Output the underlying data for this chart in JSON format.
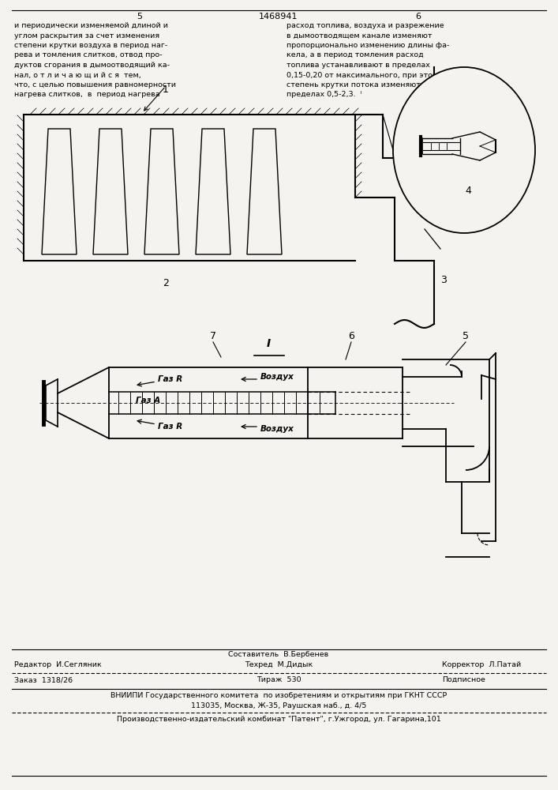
{
  "bg_color": "#f5f3ef",
  "page_number_left": "5",
  "page_number_center": "1468941",
  "page_number_right": "6",
  "text_left_col": [
    "и периодически изменяемой длиной и",
    "углом раскрытия за счет изменения",
    "степени крутки воздуха в период наг-",
    "рева и томления слитков, отвод про-",
    "дуктов сгорания в дымоотводящий ка-",
    "нал, о т л и ч а ю щ и й с я  тем,",
    "что, с целью повышения равномерности",
    "нагрева слитков,  в  период нагрева"
  ],
  "text_right_col": [
    "расход топлива, воздуха и разрежение",
    "в дымоотводящем канале изменяют",
    "пропорционально изменению длины фа-",
    "кела, а в период томления расход",
    "топлива устанавливают в пределах",
    "0,15-0,20 от максимального, при этом",
    "степень крутки потока изменяют в",
    "пределах 0,5-2,3.  ᴵ"
  ],
  "footer_editor": "Редактор  И.Сегляник",
  "footer_composer": "Составитель  В.Бербенев",
  "footer_tekhred": "Техред  М.Дидык",
  "footer_corrector": "Корректор  Л.Патай",
  "footer_order": "Заказ  1318/26",
  "footer_tirazh": "Тираж  530",
  "footer_podpisnoe": "Подписное",
  "footer_vniiipi": "ВНИИПИ Государственного комитета  по изобретениям и открытиям при ГКНТ СССР",
  "footer_address": "113035, Москва, Ж-35, Раушская наб., д. 4/5",
  "footer_kombinat": "Производственно-издательский комбинат \"Патент\", г.Ужгород, ул. Гагарина,101"
}
